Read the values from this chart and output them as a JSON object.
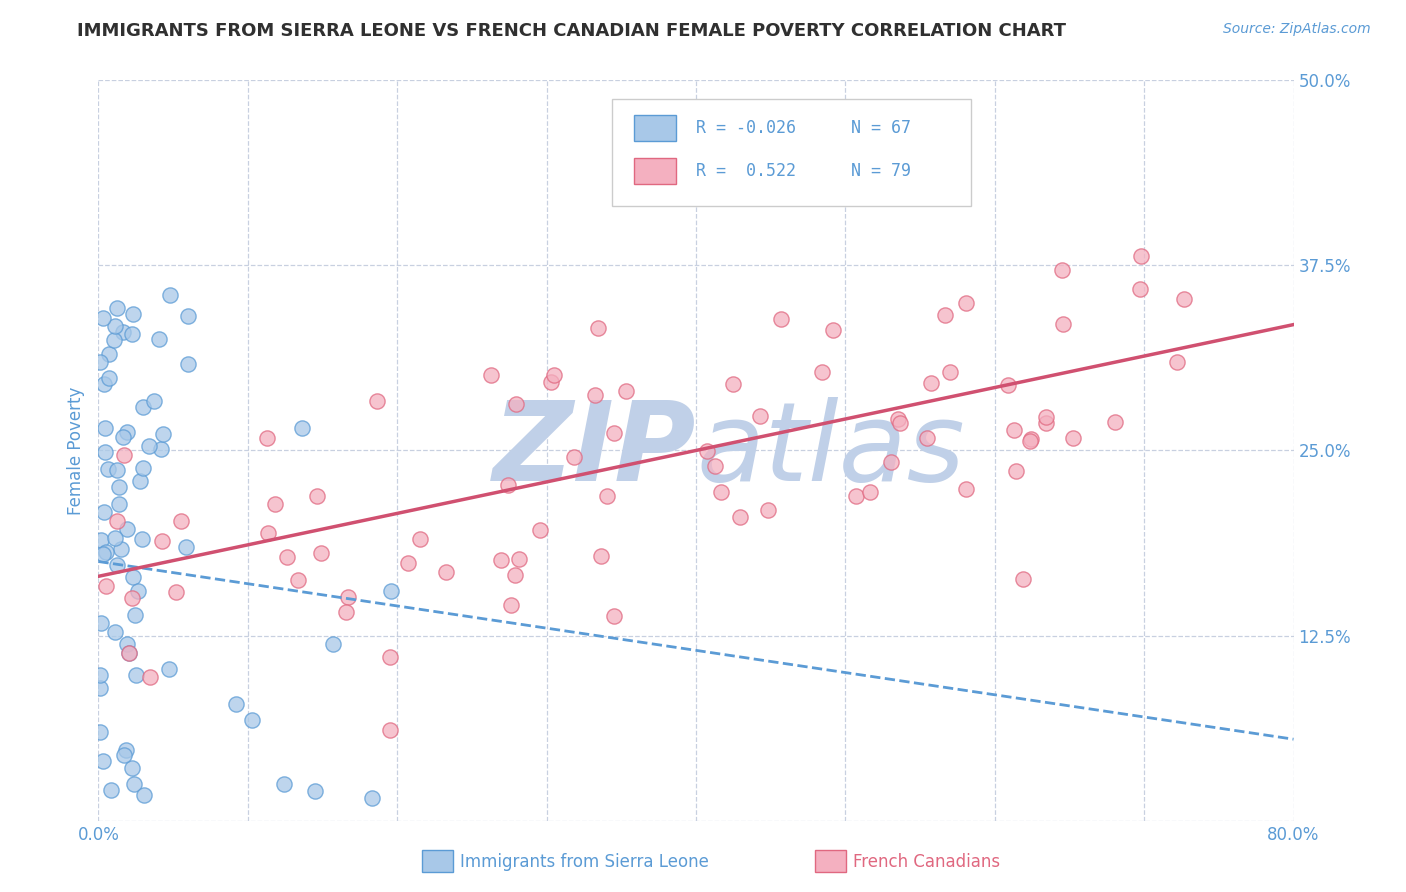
{
  "title": "IMMIGRANTS FROM SIERRA LEONE VS FRENCH CANADIAN FEMALE POVERTY CORRELATION CHART",
  "source_text": "Source: ZipAtlas.com",
  "xlabel_blue": "Immigrants from Sierra Leone",
  "xlabel_pink": "French Canadians",
  "ylabel": "Female Poverty",
  "xlim": [
    0.0,
    0.8
  ],
  "ylim": [
    0.0,
    0.5
  ],
  "xticks": [
    0.0,
    0.1,
    0.2,
    0.3,
    0.4,
    0.5,
    0.6,
    0.7,
    0.8
  ],
  "yticks": [
    0.0,
    0.125,
    0.25,
    0.375,
    0.5
  ],
  "blue_R": -0.026,
  "blue_N": 67,
  "pink_R": 0.522,
  "pink_N": 79,
  "blue_color": "#a8c8e8",
  "blue_edge_color": "#5b9bd5",
  "pink_color": "#f4b0c0",
  "pink_edge_color": "#e06880",
  "blue_line_color": "#5b9bd5",
  "pink_line_color": "#d05070",
  "title_color": "#303030",
  "axis_color": "#5b9bd5",
  "grid_color": "#c8d0e0",
  "watermark_color": "#c0d0e8",
  "background_color": "#ffffff",
  "blue_line_x0": 0.0,
  "blue_line_y0": 0.175,
  "blue_line_x1": 0.8,
  "blue_line_y1": 0.055,
  "pink_line_x0": 0.0,
  "pink_line_y0": 0.165,
  "pink_line_x1": 0.8,
  "pink_line_y1": 0.335
}
